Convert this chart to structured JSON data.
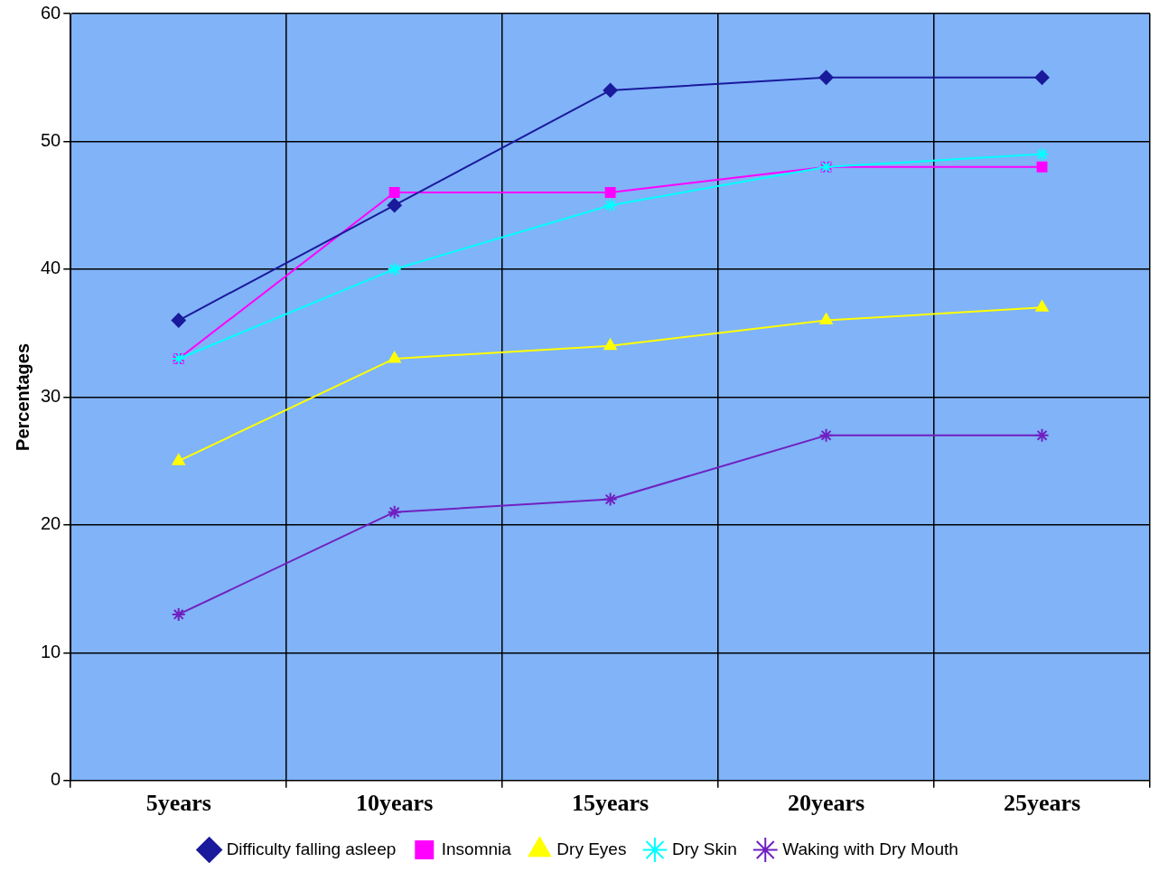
{
  "chart_data": {
    "type": "line",
    "ylabel": "Percentages",
    "categories": [
      "5years",
      "10years",
      "15years",
      "20years",
      "25years"
    ],
    "series": [
      {
        "name": "Difficulty falling asleep",
        "color": "#1a1a9c",
        "marker": "diamond",
        "values": [
          36,
          45,
          54,
          55,
          55
        ]
      },
      {
        "name": "Insomnia",
        "color": "#ff00ff",
        "marker": "square",
        "values": [
          33,
          46,
          46,
          48,
          48
        ]
      },
      {
        "name": "Dry Eyes",
        "color": "#ffff00",
        "marker": "triangle",
        "values": [
          25,
          33,
          34,
          36,
          37
        ]
      },
      {
        "name": "Dry Skin",
        "color": "#00ffff",
        "marker": "cross",
        "values": [
          33,
          40,
          45,
          48,
          49
        ]
      },
      {
        "name": "Waking with Dry Mouth",
        "color": "#7020c0",
        "marker": "cross",
        "values": [
          13,
          21,
          22,
          27,
          27
        ]
      }
    ],
    "ylim": [
      0,
      60
    ],
    "yticks": [
      0,
      10,
      20,
      30,
      40,
      50,
      60
    ],
    "grid": true,
    "legend": "bottom"
  }
}
